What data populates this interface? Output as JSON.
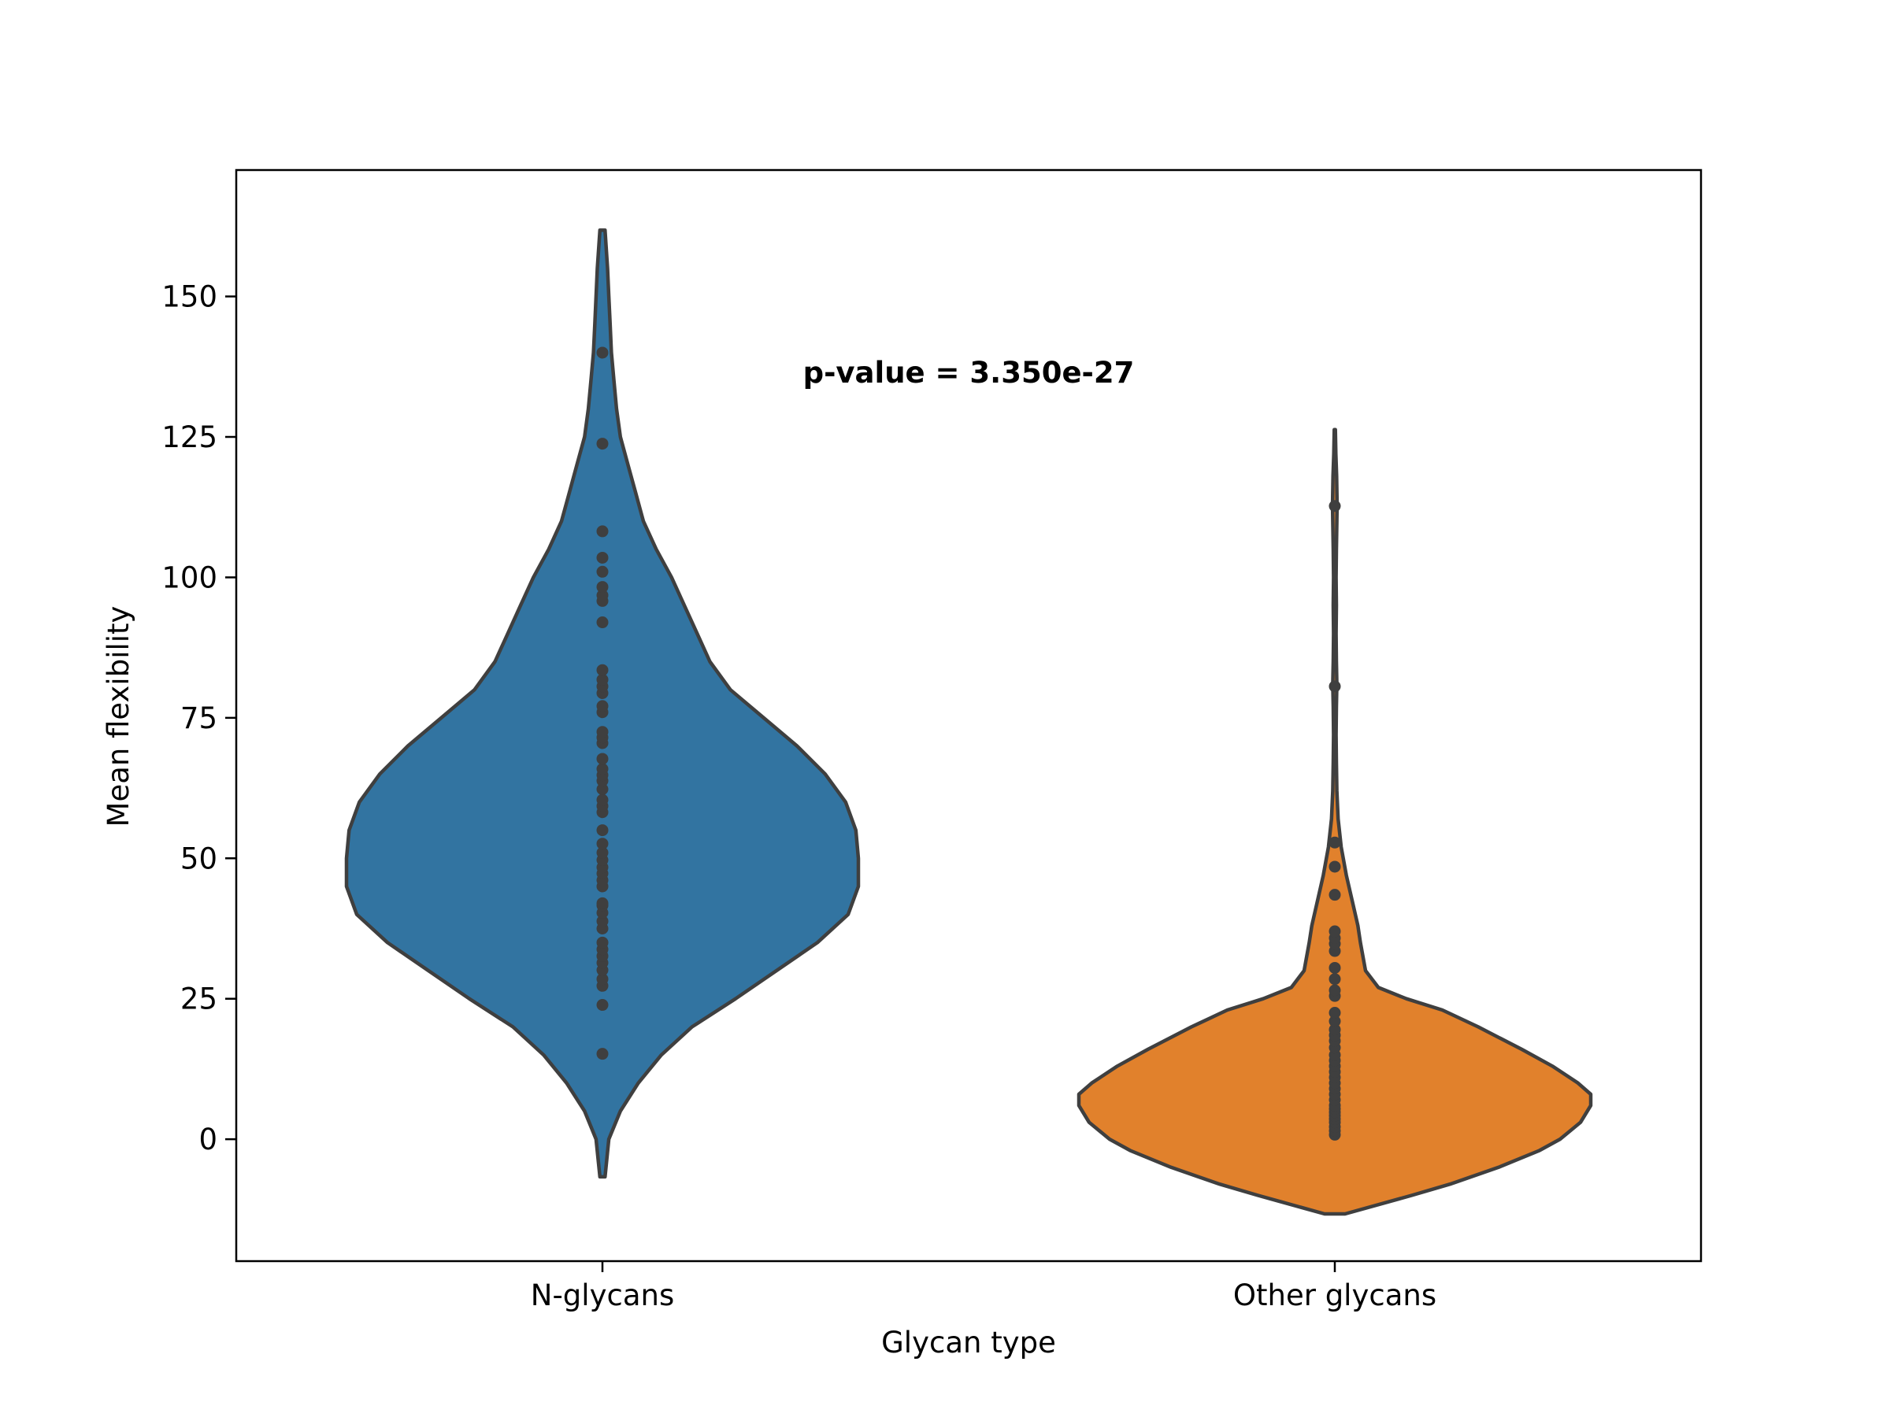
{
  "chart_data": {
    "type": "violin",
    "xlabel": "Glycan type",
    "ylabel": "Mean flexibility",
    "ylim": [
      -21.7,
      172.5
    ],
    "yticks": [
      0,
      25,
      50,
      75,
      100,
      125,
      150
    ],
    "categories": [
      "N-glycans",
      "Other glycans"
    ],
    "annotation": "p-value = 3.350e-27",
    "grid": false,
    "legend": "none",
    "colors": [
      "#3274a1",
      "#e1812c"
    ],
    "outline_color": "#3f3f3f",
    "series": [
      {
        "values": [
          15.2,
          23.9,
          27.3,
          28.5,
          30.1,
          31.4,
          32.6,
          33.8,
          35.0,
          37.5,
          38.8,
          40.3,
          41.6,
          42.0,
          45.0,
          46.1,
          47.3,
          48.4,
          49.7,
          51.0,
          52.6,
          55.0,
          58.2,
          59.3,
          60.4,
          62.3,
          63.8,
          64.8,
          65.9,
          67.7,
          70.5,
          71.5,
          72.5,
          76.0,
          77.1,
          79.4,
          80.6,
          81.8,
          83.5,
          92.0,
          95.8,
          96.8,
          98.3,
          101.0,
          103.5,
          108.2,
          123.8,
          140.0
        ],
        "kde_range": [
          -6.7,
          161.8
        ],
        "width_profile": [
          [
            -6.7,
            0.01
          ],
          [
            0,
            0.025
          ],
          [
            5,
            0.07
          ],
          [
            10,
            0.14
          ],
          [
            15,
            0.23
          ],
          [
            20,
            0.35
          ],
          [
            25,
            0.52
          ],
          [
            30,
            0.68
          ],
          [
            35,
            0.84
          ],
          [
            40,
            0.96
          ],
          [
            45,
            1.0
          ],
          [
            50,
            1.0
          ],
          [
            55,
            0.99
          ],
          [
            60,
            0.95
          ],
          [
            65,
            0.87
          ],
          [
            70,
            0.76
          ],
          [
            75,
            0.63
          ],
          [
            80,
            0.5
          ],
          [
            85,
            0.42
          ],
          [
            90,
            0.37
          ],
          [
            95,
            0.32
          ],
          [
            100,
            0.27
          ],
          [
            105,
            0.21
          ],
          [
            110,
            0.16
          ],
          [
            115,
            0.13
          ],
          [
            120,
            0.1
          ],
          [
            125,
            0.07
          ],
          [
            130,
            0.055
          ],
          [
            135,
            0.045
          ],
          [
            140,
            0.035
          ],
          [
            145,
            0.03
          ],
          [
            150,
            0.025
          ],
          [
            155,
            0.02
          ],
          [
            161.8,
            0.01
          ]
        ]
      },
      {
        "values": [
          0.8,
          1.5,
          2.2,
          3.0,
          3.6,
          4.2,
          4.8,
          5.4,
          6.0,
          7.0,
          8.0,
          9.0,
          10.0,
          11.0,
          12.0,
          13.0,
          14.0,
          15.0,
          16.3,
          17.5,
          18.5,
          19.5,
          21.0,
          22.5,
          25.5,
          26.5,
          28.5,
          30.5,
          33.5,
          34.8,
          35.8,
          37.0,
          43.5,
          48.5,
          52.8,
          80.6,
          112.7
        ],
        "kde_range": [
          -13.3,
          126.3
        ],
        "width_profile": [
          [
            -13.3,
            0.04
          ],
          [
            -10,
            0.3
          ],
          [
            -8,
            0.45
          ],
          [
            -5,
            0.64
          ],
          [
            -2,
            0.8
          ],
          [
            0,
            0.88
          ],
          [
            3,
            0.96
          ],
          [
            6,
            1.0
          ],
          [
            8,
            1.0
          ],
          [
            10,
            0.95
          ],
          [
            13,
            0.85
          ],
          [
            16,
            0.73
          ],
          [
            20,
            0.56
          ],
          [
            23,
            0.42
          ],
          [
            25,
            0.28
          ],
          [
            27,
            0.17
          ],
          [
            30,
            0.12
          ],
          [
            35,
            0.1
          ],
          [
            38,
            0.09
          ],
          [
            42,
            0.07
          ],
          [
            47,
            0.045
          ],
          [
            52,
            0.025
          ],
          [
            57,
            0.013
          ],
          [
            62,
            0.008
          ],
          [
            67,
            0.006
          ],
          [
            72,
            0.005
          ],
          [
            77,
            0.006
          ],
          [
            81,
            0.008
          ],
          [
            85,
            0.006
          ],
          [
            90,
            0.005
          ],
          [
            95,
            0.006
          ],
          [
            100,
            0.005
          ],
          [
            105,
            0.006
          ],
          [
            110,
            0.008
          ],
          [
            113,
            0.009
          ],
          [
            118,
            0.007
          ],
          [
            122,
            0.004
          ],
          [
            126.3,
            0.002
          ]
        ]
      }
    ]
  }
}
